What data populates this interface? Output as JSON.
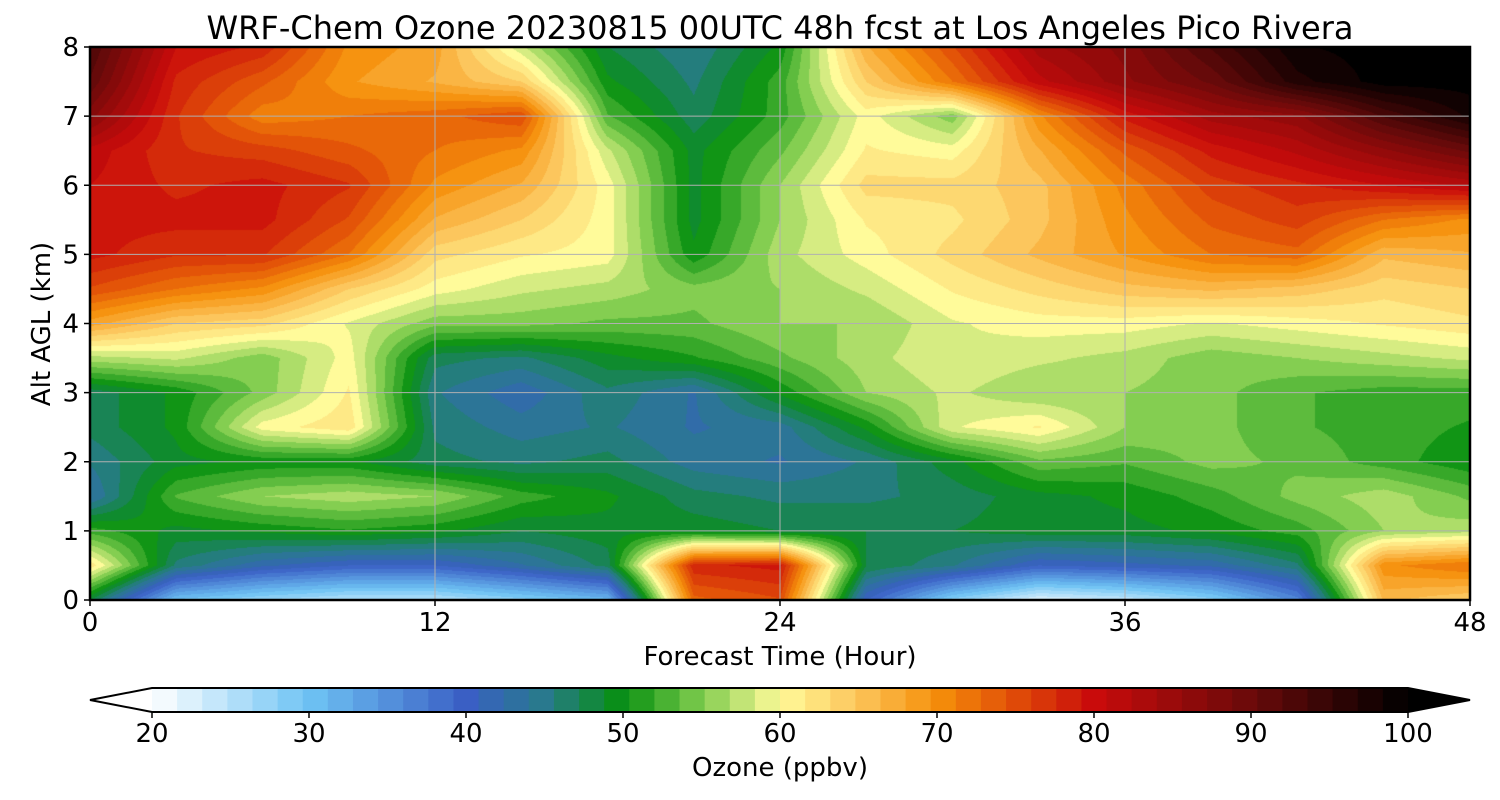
{
  "chart_data": {
    "type": "heatmap",
    "title": "WRF-Chem Ozone  20230815 00UTC 48h fcst at Los Angeles Pico Rivera",
    "xlabel": "Forecast Time (Hour)",
    "ylabel": "Alt AGL (km)",
    "xlim": [
      0,
      48
    ],
    "ylim": [
      0,
      8
    ],
    "xticks": [
      0,
      12,
      24,
      36,
      48
    ],
    "yticks": [
      0,
      1,
      2,
      3,
      4,
      5,
      6,
      7,
      8
    ],
    "grid": true,
    "colorbar": {
      "label": "Ozone  (ppbv)",
      "ticks": [
        20,
        30,
        40,
        50,
        60,
        70,
        80,
        90,
        100
      ],
      "range": [
        20,
        100
      ],
      "extend": "both",
      "orientation": "horizontal",
      "colors": [
        {
          "v": 20,
          "c": "#ffffff"
        },
        {
          "v": 30,
          "c": "#6ec3f4"
        },
        {
          "v": 40,
          "c": "#3a5fc4"
        },
        {
          "v": 45,
          "c": "#287a8c"
        },
        {
          "v": 50,
          "c": "#079010"
        },
        {
          "v": 55,
          "c": "#7fcc4e"
        },
        {
          "v": 60,
          "c": "#fffb9a"
        },
        {
          "v": 65,
          "c": "#fcc45a"
        },
        {
          "v": 70,
          "c": "#f58f0a"
        },
        {
          "v": 75,
          "c": "#e04c08"
        },
        {
          "v": 80,
          "c": "#c90b0b"
        },
        {
          "v": 90,
          "c": "#6a0a0a"
        },
        {
          "v": 100,
          "c": "#000000"
        }
      ]
    },
    "x": [
      0,
      3,
      6,
      9,
      12,
      15,
      18,
      21,
      24,
      27,
      30,
      33,
      36,
      39,
      42,
      45,
      48
    ],
    "y": [
      0,
      0.5,
      1,
      1.5,
      2,
      2.5,
      3,
      3.5,
      4,
      4.5,
      5,
      5.5,
      6,
      6.5,
      7,
      7.5,
      8
    ],
    "z": [
      [
        48,
        30,
        27,
        25,
        25,
        28,
        31,
        73,
        75,
        40,
        28,
        22,
        24,
        28,
        36,
        66,
        64
      ],
      [
        62,
        46,
        42,
        40,
        40,
        43,
        47,
        78,
        79,
        48,
        45,
        40,
        41,
        42,
        46,
        70,
        72
      ],
      [
        52,
        49,
        50,
        51,
        50,
        48,
        49,
        49,
        48,
        48,
        48,
        49,
        49,
        50,
        52,
        56,
        57
      ],
      [
        43,
        53,
        56,
        57,
        56,
        52,
        50,
        47,
        46,
        46,
        47,
        49,
        50,
        52,
        55,
        57,
        54
      ],
      [
        45,
        49,
        50,
        50,
        47,
        46,
        47,
        44,
        43,
        45,
        49,
        54,
        53,
        55,
        54,
        52,
        50
      ],
      [
        47,
        50,
        60,
        62,
        46,
        44,
        45,
        43,
        44,
        50,
        59,
        61,
        56,
        55,
        53,
        52,
        51
      ],
      [
        47,
        50,
        55,
        61,
        45,
        42,
        46,
        43,
        50,
        56,
        58,
        56,
        56,
        55,
        53,
        52,
        52
      ],
      [
        57,
        58,
        55,
        60,
        47,
        46,
        49,
        51,
        54,
        57,
        59,
        58,
        57,
        55,
        56,
        57,
        58
      ],
      [
        68,
        64,
        63,
        59,
        55,
        55,
        54,
        54,
        56,
        56,
        59,
        60,
        60,
        59,
        60,
        61,
        62
      ],
      [
        75,
        72,
        70,
        64,
        60,
        58,
        57,
        55,
        56,
        58,
        61,
        63,
        65,
        66,
        65,
        63,
        64
      ],
      [
        79,
        77,
        77,
        72,
        63,
        61,
        60,
        50,
        57,
        60,
        63,
        66,
        69,
        72,
        73,
        66,
        67
      ],
      [
        79,
        79,
        79,
        75,
        67,
        64,
        60,
        49,
        56,
        61,
        62,
        65,
        70,
        74,
        76,
        72,
        70
      ],
      [
        80,
        78,
        79,
        77,
        70,
        67,
        60,
        49,
        56,
        63,
        63,
        65,
        71,
        76,
        78,
        80,
        82
      ],
      [
        81,
        77,
        76,
        74,
        72,
        70,
        58,
        49,
        54,
        61,
        60,
        67,
        74,
        79,
        82,
        86,
        90
      ],
      [
        87,
        77,
        71,
        72,
        73,
        75,
        53,
        47,
        52,
        60,
        55,
        70,
        79,
        84,
        86,
        93,
        98
      ],
      [
        91,
        78,
        74,
        69,
        67,
        64,
        50,
        46,
        52,
        64,
        72,
        81,
        86,
        90,
        97,
        100,
        100
      ],
      [
        93,
        80,
        78,
        70,
        68,
        58,
        48,
        45,
        50,
        67,
        75,
        84,
        87,
        93,
        99,
        100,
        100
      ]
    ]
  }
}
